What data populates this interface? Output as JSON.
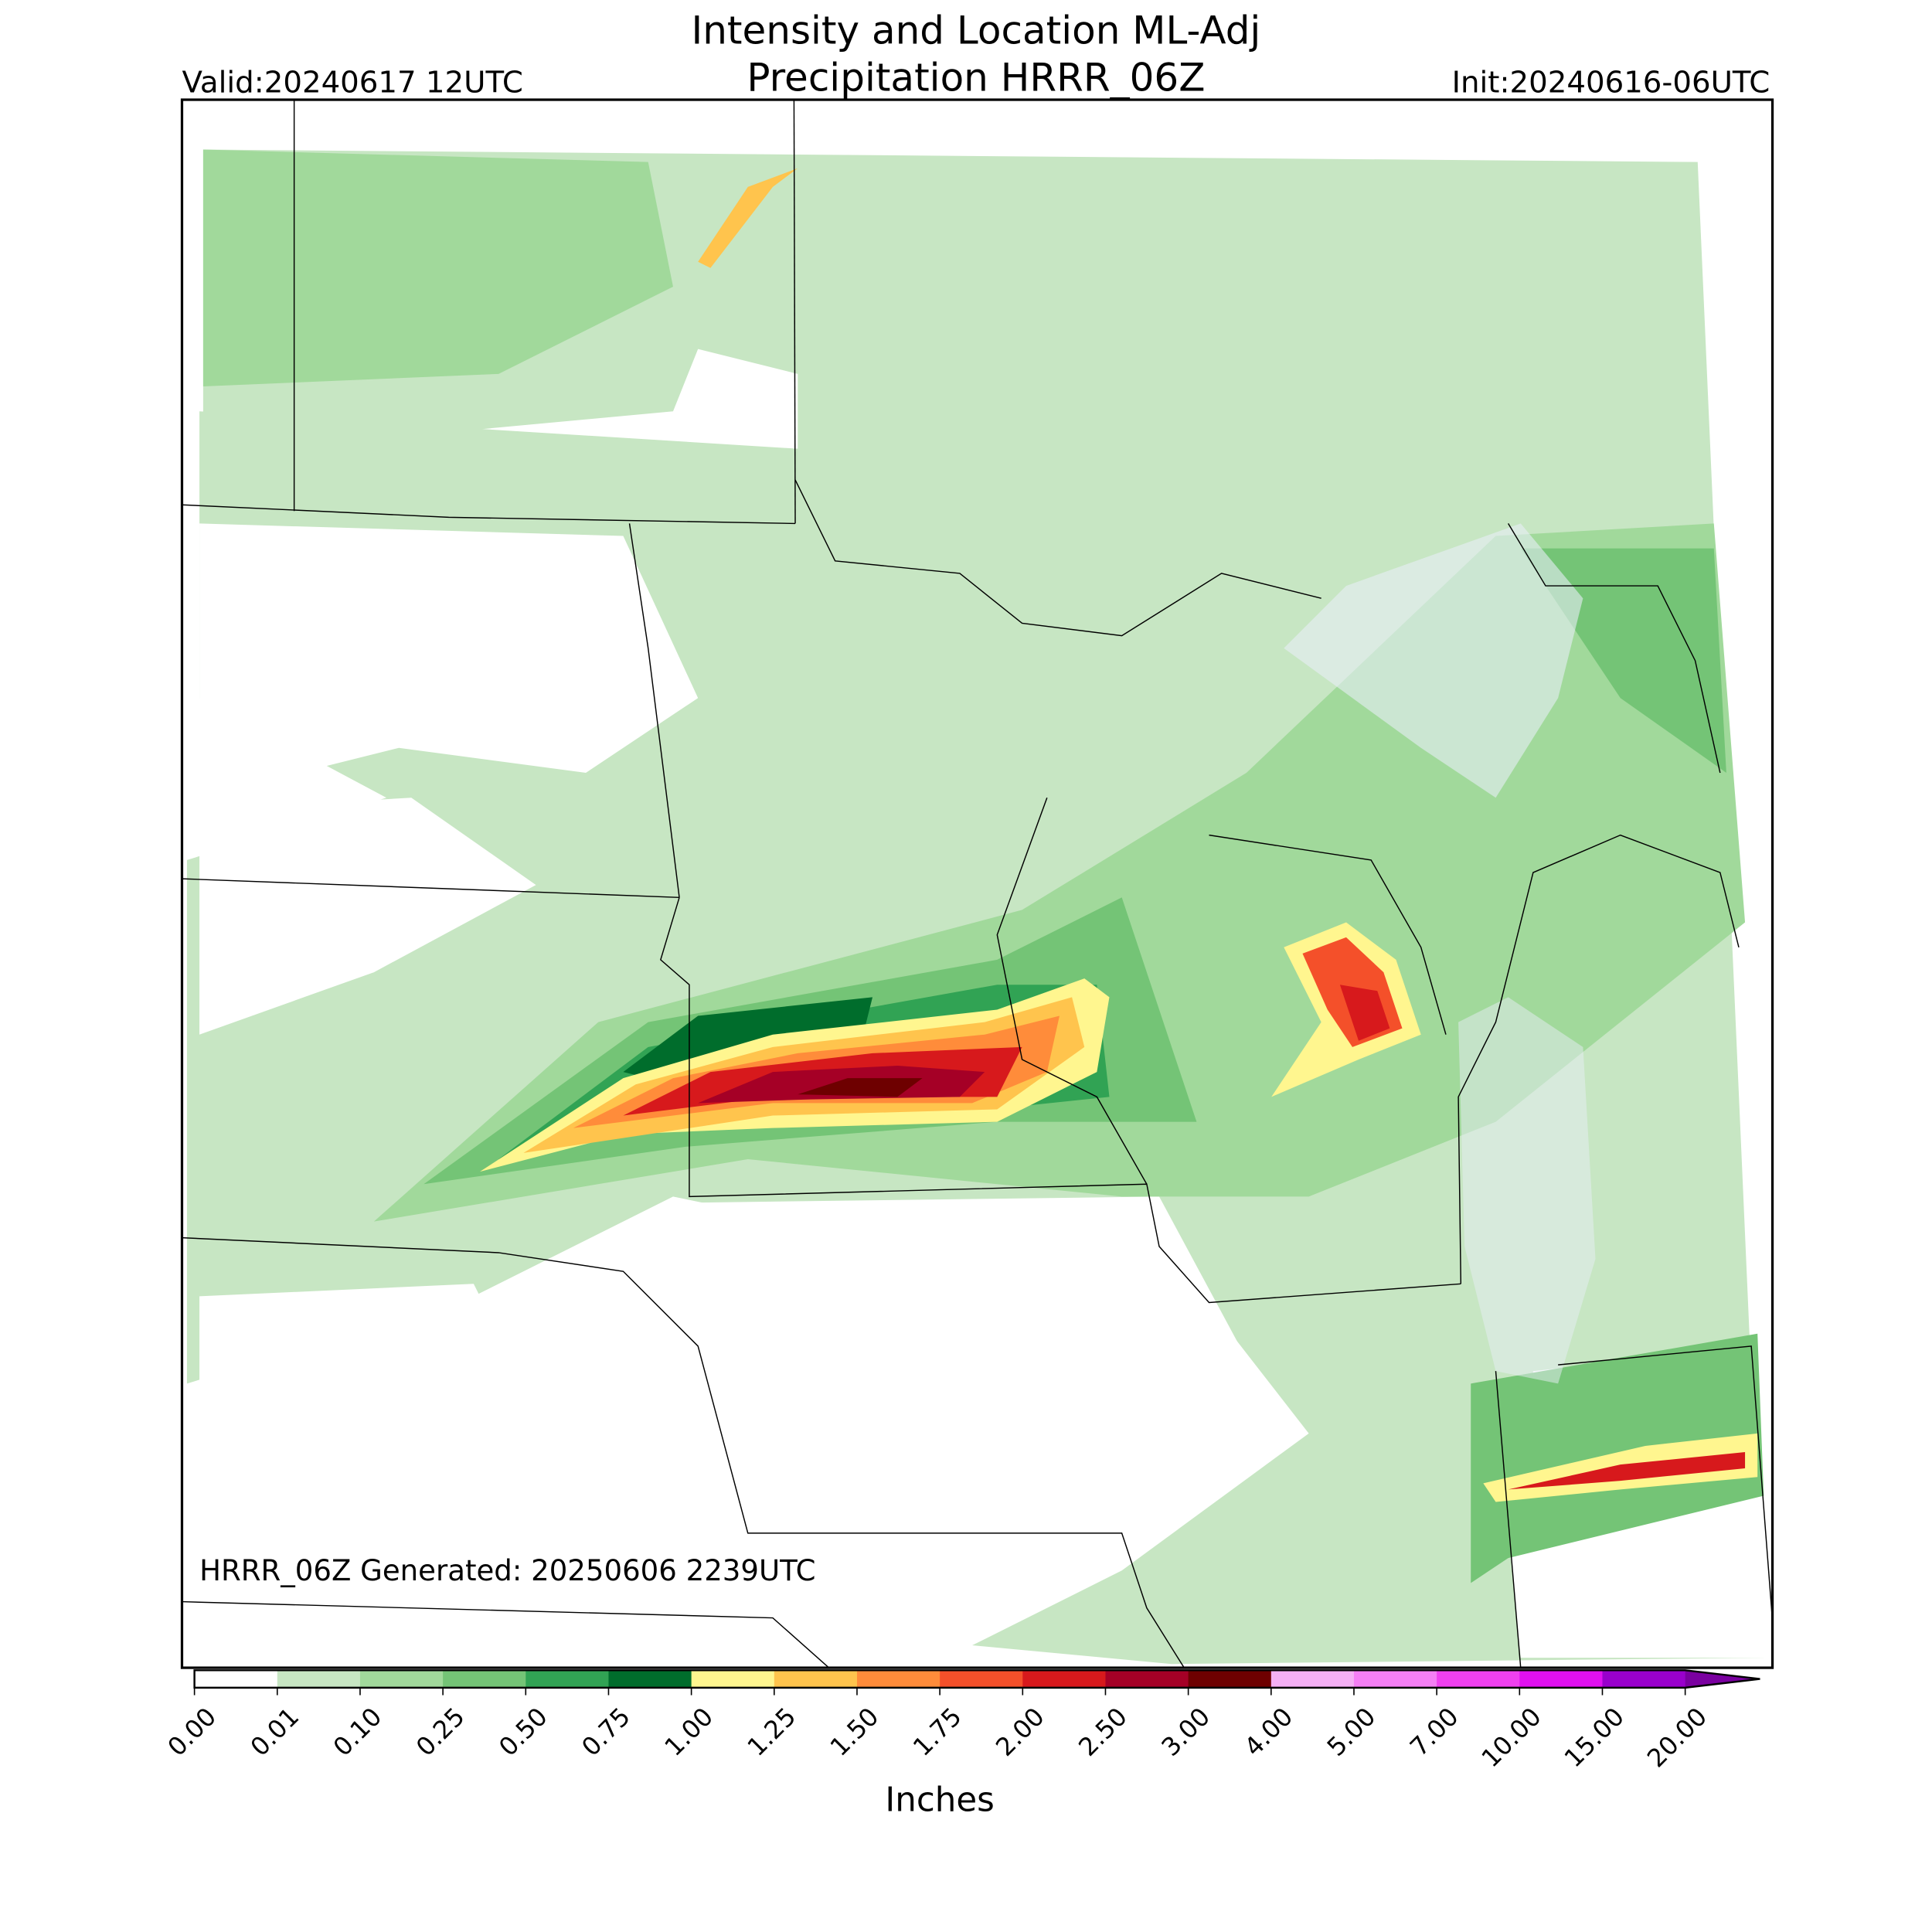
{
  "map": {
    "title": [
      "Intensity and Location ML-Adj",
      "Precipitation HRRR_06Z"
    ],
    "valid": "Valid:20240617 12UTC",
    "init": "Init:20240616-06UTC",
    "generated": "HRRR_06Z Generated: 20250606 2239UTC",
    "colorbar": {
      "label": "Inches",
      "ticks": [
        {
          "value": 0,
          "label": "0.00"
        },
        {
          "value": 0.01,
          "label": "0.01"
        },
        {
          "value": 0.1,
          "label": "0.10"
        },
        {
          "value": 0.25,
          "label": "0.25"
        },
        {
          "value": 0.5,
          "label": "0.50"
        },
        {
          "value": 0.75,
          "label": "0.75"
        },
        {
          "value": 1,
          "label": "1.00"
        },
        {
          "value": 1.25,
          "label": "1.25"
        },
        {
          "value": 1.5,
          "label": "1.50"
        },
        {
          "value": 1.75,
          "label": "1.75"
        },
        {
          "value": 2,
          "label": "2.00"
        },
        {
          "value": 2.5,
          "label": "2.50"
        },
        {
          "value": 3,
          "label": "3.00"
        },
        {
          "value": 4,
          "label": "4.00"
        },
        {
          "value": 5,
          "label": "5.00"
        },
        {
          "value": 7,
          "label": "7.00"
        },
        {
          "value": 10,
          "label": "10.00"
        },
        {
          "value": 15,
          "label": "15.00"
        },
        {
          "value": 20,
          "label": "20.00"
        }
      ],
      "colors": [
        "#ffffff",
        "#c7e6c3",
        "#a1d99b",
        "#74c476",
        "#31a354",
        "#006d2c",
        "#fff68f",
        "#ffc44d",
        "#ff8c3a",
        "#f4502a",
        "#d7191c",
        "#a50026",
        "#6e0000",
        "#f5b0f5",
        "#f57ff5",
        "#f040f0",
        "#e010f0",
        "#9900cc"
      ],
      "extend_color": "#7a00a0"
    }
  }
}
